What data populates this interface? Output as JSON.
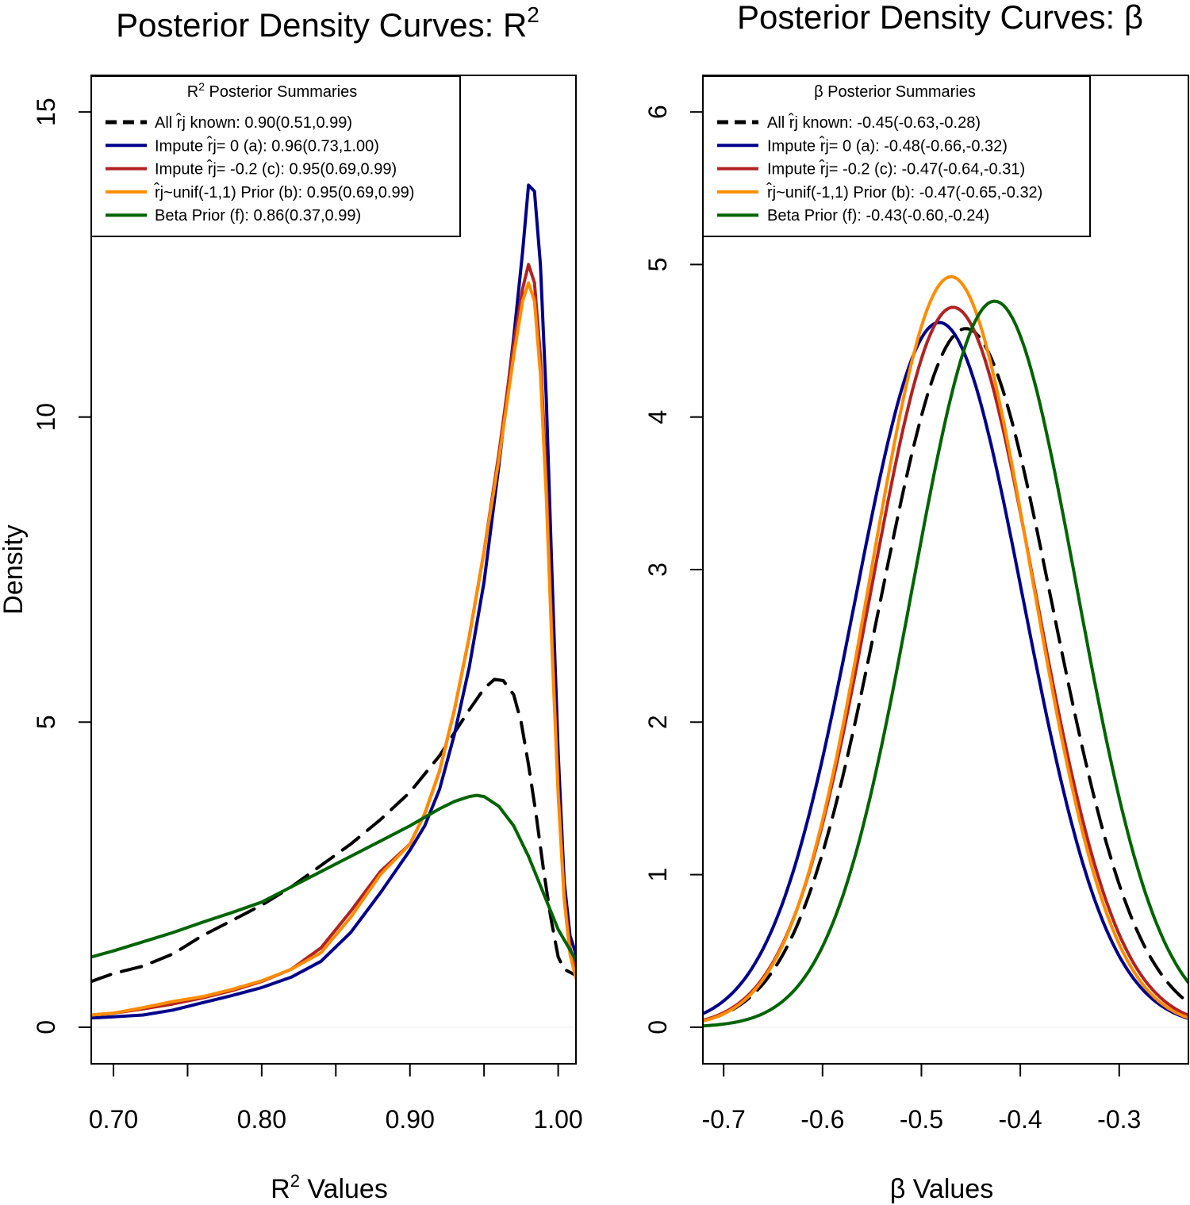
{
  "chart_data": [
    {
      "type": "line",
      "title": "Posterior Density Curves: R",
      "title_sup": "2",
      "xlabel": "R",
      "xlabel_sup": "2",
      "xlabel_tail": " Values",
      "ylabel": "Density",
      "xlim": [
        0.685,
        1.012
      ],
      "ylim": [
        -0.6,
        15.6
      ],
      "xticks": [
        0.7,
        0.75,
        0.8,
        0.85,
        0.9,
        0.95,
        1.0
      ],
      "xtick_labels": [
        "0.70",
        "",
        "0.80",
        "",
        "0.90",
        "",
        "1.00"
      ],
      "yticks": [
        0,
        5,
        10,
        15
      ],
      "ytick_labels": [
        "0",
        "5",
        "10",
        "15"
      ],
      "legend": {
        "title": "R",
        "title_sup": "2",
        "title_tail": " Posterior Summaries",
        "placement": "top-left"
      },
      "series": [
        {
          "name": "All r̂j known: 0.90(0.51,0.99)",
          "color": "#000000",
          "dash": true,
          "x": [
            0.685,
            0.7,
            0.72,
            0.74,
            0.76,
            0.78,
            0.8,
            0.82,
            0.84,
            0.86,
            0.88,
            0.9,
            0.92,
            0.94,
            0.95,
            0.957,
            0.963,
            0.97,
            0.975,
            0.98,
            0.985,
            0.99,
            0.995,
            1.0,
            1.004,
            1.008,
            1.012
          ],
          "y": [
            0.75,
            0.88,
            1.0,
            1.2,
            1.5,
            1.75,
            2.0,
            2.3,
            2.65,
            3.0,
            3.4,
            3.85,
            4.45,
            5.2,
            5.55,
            5.7,
            5.68,
            5.45,
            5.0,
            4.3,
            3.5,
            2.6,
            1.8,
            1.15,
            0.95,
            0.9,
            0.85
          ]
        },
        {
          "name": "Impute r̂j= 0 (a): 0.96(0.73,1.00)",
          "color": "#00008b",
          "dash": false,
          "x": [
            0.685,
            0.7,
            0.72,
            0.74,
            0.76,
            0.78,
            0.8,
            0.82,
            0.84,
            0.86,
            0.88,
            0.9,
            0.91,
            0.92,
            0.93,
            0.94,
            0.95,
            0.96,
            0.97,
            0.976,
            0.98,
            0.984,
            0.988,
            0.992,
            0.996,
            1.0,
            1.004,
            1.008,
            1.012
          ],
          "y": [
            0.15,
            0.17,
            0.2,
            0.28,
            0.4,
            0.52,
            0.65,
            0.82,
            1.08,
            1.55,
            2.2,
            2.9,
            3.3,
            3.9,
            4.8,
            5.9,
            7.3,
            9.2,
            11.3,
            12.7,
            13.8,
            13.7,
            12.5,
            10.3,
            7.3,
            4.5,
            2.4,
            1.5,
            1.2
          ]
        },
        {
          "name": "Impute r̂j= -0.2 (c): 0.95(0.69,0.99)",
          "color": "#b22222",
          "dash": false,
          "x": [
            0.685,
            0.7,
            0.72,
            0.74,
            0.76,
            0.78,
            0.8,
            0.82,
            0.84,
            0.86,
            0.88,
            0.9,
            0.91,
            0.92,
            0.93,
            0.94,
            0.95,
            0.96,
            0.97,
            0.976,
            0.98,
            0.984,
            0.988,
            0.992,
            0.996,
            1.0,
            1.004,
            1.008,
            1.012
          ],
          "y": [
            0.2,
            0.23,
            0.3,
            0.38,
            0.48,
            0.6,
            0.75,
            0.95,
            1.3,
            1.9,
            2.55,
            3.0,
            3.5,
            4.2,
            5.2,
            6.4,
            7.8,
            9.4,
            11.2,
            12.1,
            12.5,
            12.2,
            11.0,
            9.0,
            6.3,
            3.9,
            2.2,
            1.3,
            1.0
          ]
        },
        {
          "name": "r̂j~unif(-1,1) Prior (b): 0.95(0.69,0.99)",
          "color": "#ff8c00",
          "dash": false,
          "x": [
            0.685,
            0.7,
            0.72,
            0.74,
            0.76,
            0.78,
            0.8,
            0.82,
            0.84,
            0.86,
            0.88,
            0.9,
            0.91,
            0.92,
            0.93,
            0.94,
            0.95,
            0.96,
            0.97,
            0.976,
            0.98,
            0.984,
            0.988,
            0.992,
            0.996,
            1.0,
            1.004,
            1.008,
            1.012
          ],
          "y": [
            0.2,
            0.23,
            0.32,
            0.42,
            0.5,
            0.62,
            0.76,
            0.95,
            1.22,
            1.8,
            2.5,
            3.0,
            3.5,
            4.2,
            5.2,
            6.4,
            7.8,
            9.3,
            11.0,
            11.9,
            12.2,
            11.9,
            10.7,
            8.7,
            6.1,
            3.8,
            2.1,
            1.2,
            0.8
          ]
        },
        {
          "name": "Beta Prior (f): 0.86(0.37,0.99)",
          "color": "#006400",
          "dash": false,
          "x": [
            0.685,
            0.7,
            0.72,
            0.74,
            0.76,
            0.78,
            0.8,
            0.82,
            0.84,
            0.86,
            0.88,
            0.9,
            0.92,
            0.93,
            0.94,
            0.945,
            0.95,
            0.96,
            0.97,
            0.98,
            0.99,
            1.0,
            1.012
          ],
          "y": [
            1.15,
            1.25,
            1.4,
            1.55,
            1.72,
            1.88,
            2.05,
            2.3,
            2.55,
            2.8,
            3.05,
            3.3,
            3.58,
            3.7,
            3.78,
            3.8,
            3.78,
            3.62,
            3.3,
            2.8,
            2.2,
            1.6,
            1.1
          ]
        }
      ]
    },
    {
      "type": "line",
      "title": "Posterior Density Curves: β",
      "xlabel": "β Values",
      "ylabel": "",
      "xlim": [
        -0.721,
        -0.23
      ],
      "ylim": [
        -0.24,
        6.24
      ],
      "xticks": [
        -0.7,
        -0.6,
        -0.5,
        -0.4,
        -0.3
      ],
      "xtick_labels": [
        "-0.7",
        "-0.6",
        "-0.5",
        "-0.4",
        "-0.3"
      ],
      "yticks": [
        0,
        1,
        2,
        3,
        4,
        5,
        6
      ],
      "ytick_labels": [
        "0",
        "1",
        "2",
        "3",
        "4",
        "5",
        "6"
      ],
      "legend": {
        "title": "β Posterior Summaries",
        "placement": "top-left"
      },
      "series": [
        {
          "name": "All r̂j known: -0.45(-0.63,-0.28)",
          "color": "#000000",
          "dash": true,
          "mean": -0.455,
          "sd": 0.087,
          "peak": 4.58
        },
        {
          "name": "Impute r̂j= 0 (a): -0.48(-0.66,-0.32)",
          "color": "#00008b",
          "dash": false,
          "mean": -0.482,
          "sd": 0.085,
          "peak": 4.62
        },
        {
          "name": "Impute r̂j= -0.2 (c): -0.47(-0.64,-0.31)",
          "color": "#b22222",
          "dash": false,
          "mean": -0.468,
          "sd": 0.083,
          "peak": 4.72
        },
        {
          "name": "r̂j~unif(-1,1) Prior (b): -0.47(-0.65,-0.32)",
          "color": "#ff8c00",
          "dash": false,
          "mean": -0.47,
          "sd": 0.081,
          "peak": 4.92
        },
        {
          "name": "Beta Prior (f): -0.43(-0.60,-0.24)",
          "color": "#006400",
          "dash": false,
          "mean": -0.426,
          "sd": 0.083,
          "peak": 4.76
        }
      ]
    }
  ]
}
